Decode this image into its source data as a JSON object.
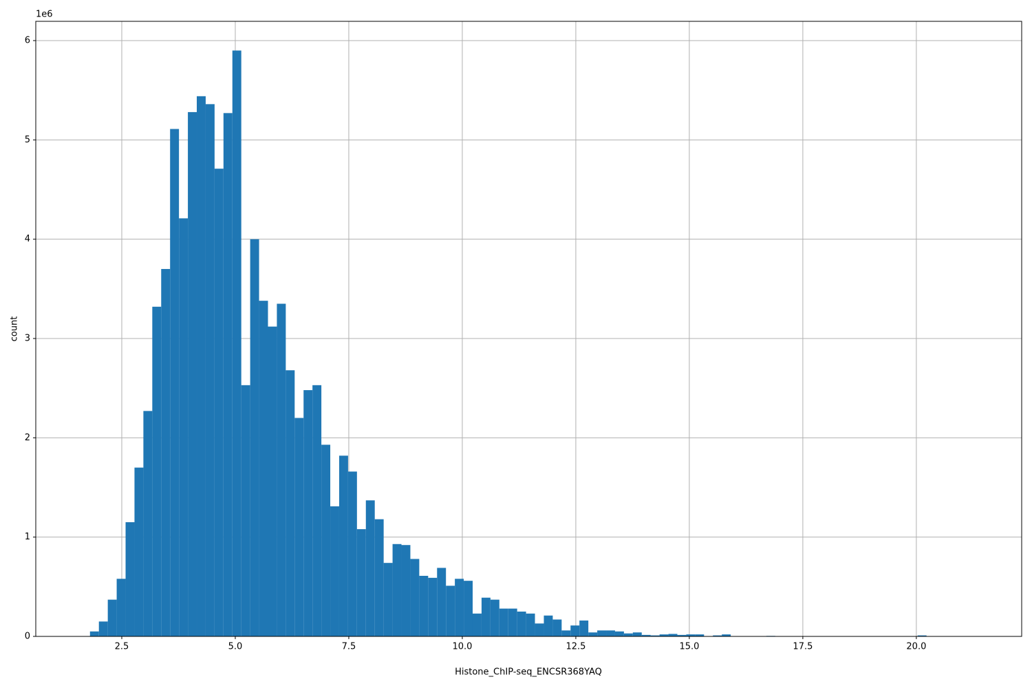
{
  "chart_data": {
    "type": "histogram",
    "x_label": "Histone_ChIP-seq_ENCSR368YAQ",
    "y_label": "count",
    "y_offset_label": "1e6",
    "color": "#1f77b4",
    "grid": true,
    "bins": [
      1.8,
      1.996,
      2.192,
      2.388,
      2.584,
      2.78,
      2.976,
      3.172,
      3.368,
      3.564,
      3.76,
      3.956,
      4.152,
      4.348,
      4.544,
      4.74,
      4.936,
      5.132,
      5.328,
      5.524,
      5.72,
      5.916,
      6.112,
      6.308,
      6.504,
      6.7,
      6.896,
      7.092,
      7.288,
      7.484,
      7.68,
      7.876,
      8.072,
      8.268,
      8.464,
      8.66,
      8.856,
      9.052,
      9.248,
      9.444,
      9.64,
      9.836,
      10.032,
      10.228,
      10.424,
      10.62,
      10.816,
      11.012,
      11.208,
      11.404,
      11.6,
      11.796,
      11.992,
      12.188,
      12.384,
      12.58,
      12.776,
      12.972,
      13.168,
      13.364,
      13.56,
      13.756,
      13.952,
      14.148,
      14.344,
      14.54,
      14.736,
      14.932,
      15.128,
      15.324,
      15.52,
      15.716,
      15.912,
      16.108,
      16.304,
      16.5,
      16.696,
      16.892,
      17.088,
      17.284,
      17.48,
      17.676,
      17.872,
      18.068,
      18.264,
      18.46,
      18.656,
      18.852,
      19.048,
      19.244,
      19.44,
      19.636,
      19.832,
      20.028,
      20.224,
      20.42,
      20.616,
      20.812,
      21.008,
      21.204,
      21.4
    ],
    "values": [
      0.05,
      0.15,
      0.37,
      0.58,
      1.15,
      1.7,
      2.27,
      3.32,
      3.7,
      5.11,
      4.21,
      5.28,
      5.44,
      5.36,
      4.71,
      5.27,
      5.9,
      2.53,
      4.0,
      3.38,
      3.12,
      3.35,
      2.68,
      2.2,
      2.48,
      2.53,
      1.93,
      1.31,
      1.82,
      1.66,
      1.08,
      1.37,
      1.18,
      0.74,
      0.93,
      0.92,
      0.78,
      0.61,
      0.59,
      0.69,
      0.51,
      0.58,
      0.56,
      0.23,
      0.39,
      0.37,
      0.28,
      0.28,
      0.25,
      0.23,
      0.13,
      0.21,
      0.17,
      0.06,
      0.11,
      0.16,
      0.04,
      0.06,
      0.06,
      0.05,
      0.03,
      0.04,
      0.015,
      0.01,
      0.02,
      0.025,
      0.015,
      0.02,
      0.02,
      0,
      0.01,
      0.02,
      0,
      0,
      0,
      0,
      0.005,
      0,
      0,
      0,
      0,
      0,
      0,
      0,
      0,
      0,
      0,
      0,
      0,
      0,
      0,
      0,
      0,
      0.01,
      0,
      0,
      0,
      0,
      0,
      0
    ],
    "xlim": [
      0.606,
      22.32
    ],
    "ylim": [
      0,
      6.194
    ],
    "xticks": [
      2.5,
      {
        "value": 5,
        "label": "5.0"
      },
      7.5,
      {
        "value": 10,
        "label": "10.0"
      },
      12.5,
      {
        "value": 15,
        "label": "15.0"
      },
      17.5,
      {
        "value": 20,
        "label": "20.0"
      }
    ],
    "yticks": [
      0,
      1,
      2,
      3,
      4,
      5,
      6
    ]
  }
}
